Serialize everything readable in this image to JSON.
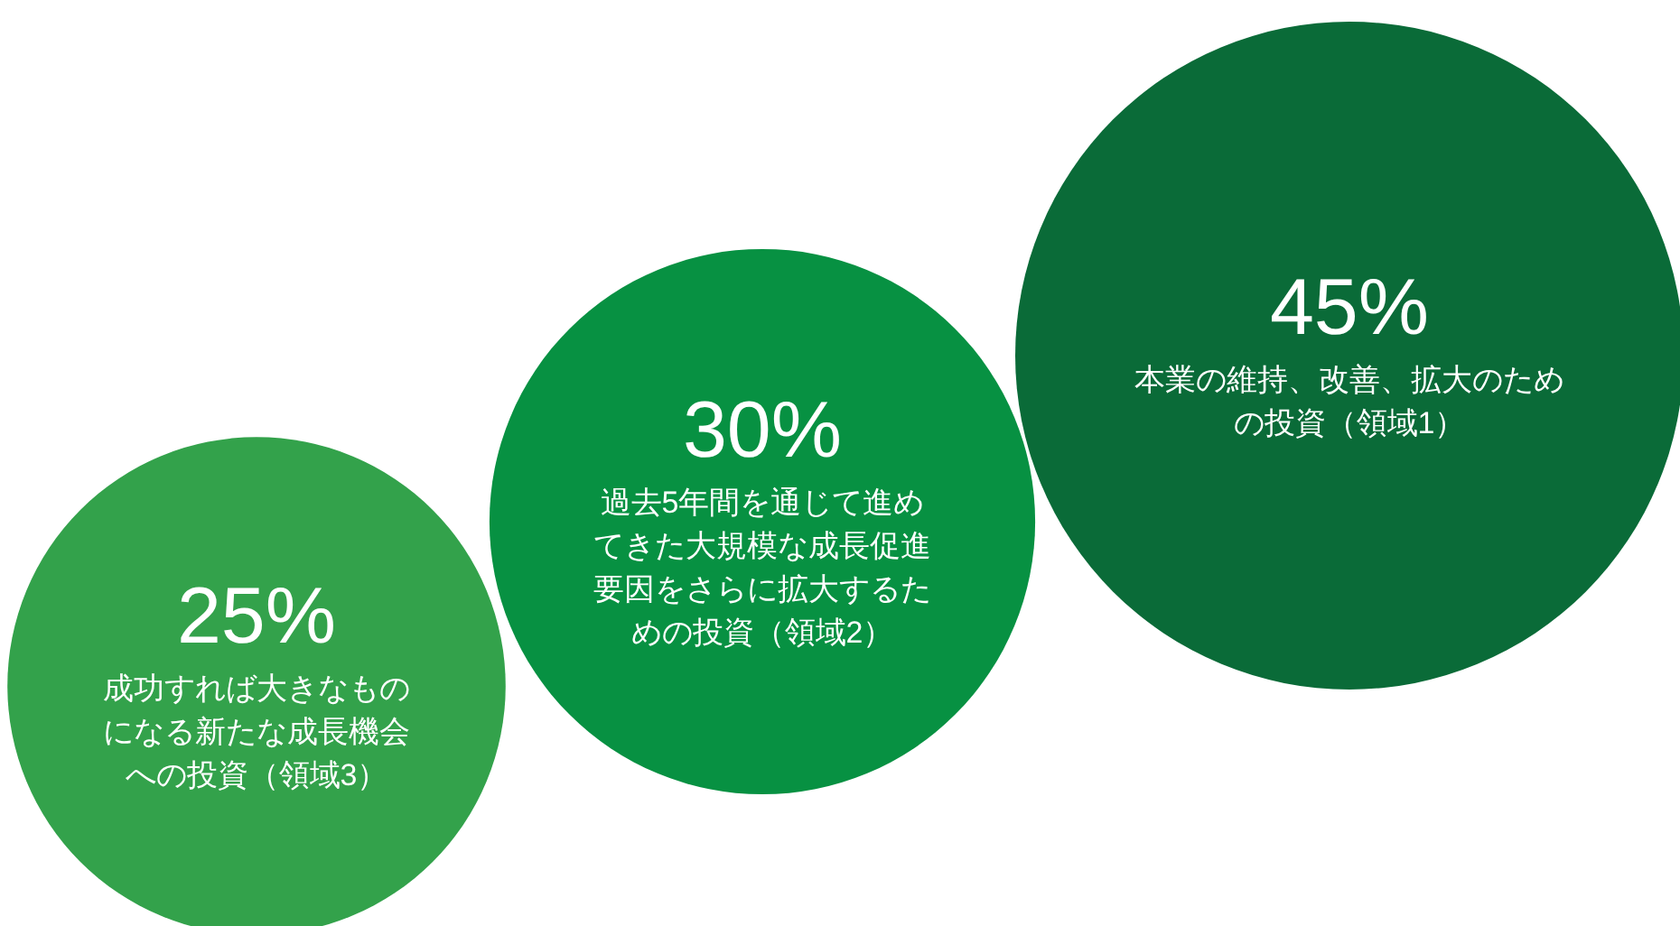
{
  "chart_data": {
    "type": "other",
    "categories": [
      "成功すれば大きなものになる新たな成長機会への投資（領域3）",
      "過去5年間を通じて進めてきた大規模な成長促進要因をさらに拡大するための投資（領域2）",
      "本業の維持、改善、拡大のための投資（領域1）"
    ],
    "values": [
      25,
      30,
      45
    ],
    "value_labels": [
      "25%",
      "30%",
      "45%"
    ],
    "colors": [
      "#33a24b",
      "#079142",
      "#0a6b38"
    ]
  }
}
